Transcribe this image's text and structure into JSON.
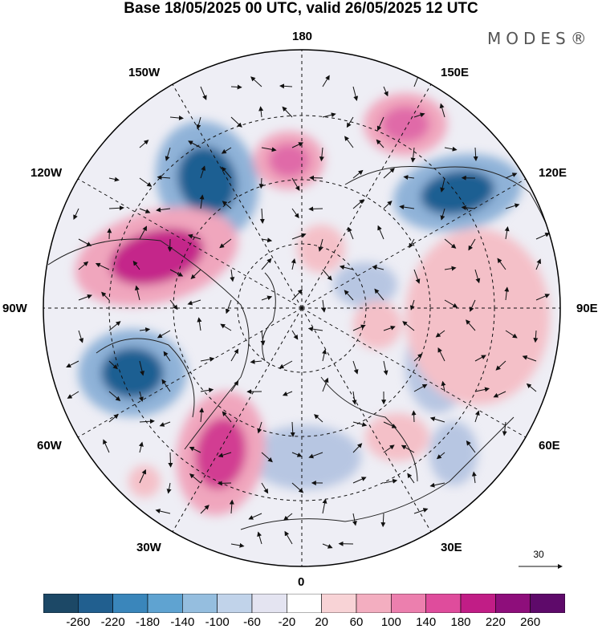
{
  "title": "Base 18/05/2025 00 UTC, valid 26/05/2025 12 UTC",
  "brand": "MODES®",
  "longitude_labels": {
    "180": "180",
    "150W": "150W",
    "150E": "150E",
    "120W": "120W",
    "120E": "120E",
    "90W": "90W",
    "90E": "90E",
    "60W": "60W",
    "60E": "60E",
    "30W": "30W",
    "30E": "30E",
    "0": "0"
  },
  "reference_vector": {
    "label": "30"
  },
  "colorbar": {
    "colors": [
      "#1c4866",
      "#215f8f",
      "#3a86bb",
      "#5fa3d1",
      "#95bedf",
      "#c1d3ea",
      "#e4e4f1",
      "#ffffff",
      "#f8d3d6",
      "#f3aec0",
      "#ec7fae",
      "#df4c9c",
      "#c11d86",
      "#8e0e7b",
      "#5e0a6a"
    ],
    "tick_labels": [
      "-260",
      "-220",
      "-180",
      "-140",
      "-100",
      "-60",
      "-20",
      "20",
      "60",
      "100",
      "140",
      "180",
      "220",
      "260"
    ]
  },
  "anomalies": [
    {
      "type": "negative",
      "color": "#1c5f92"
    },
    {
      "type": "negative",
      "color": "#1c5f92"
    },
    {
      "type": "negative",
      "color": "#1c5f92"
    },
    {
      "type": "positive",
      "color": "#c4288a"
    },
    {
      "type": "positive",
      "color": "#d23c92"
    },
    {
      "type": "positive",
      "color": "#e06aa8"
    },
    {
      "type": "positive",
      "color": "#e06aa8"
    }
  ]
}
